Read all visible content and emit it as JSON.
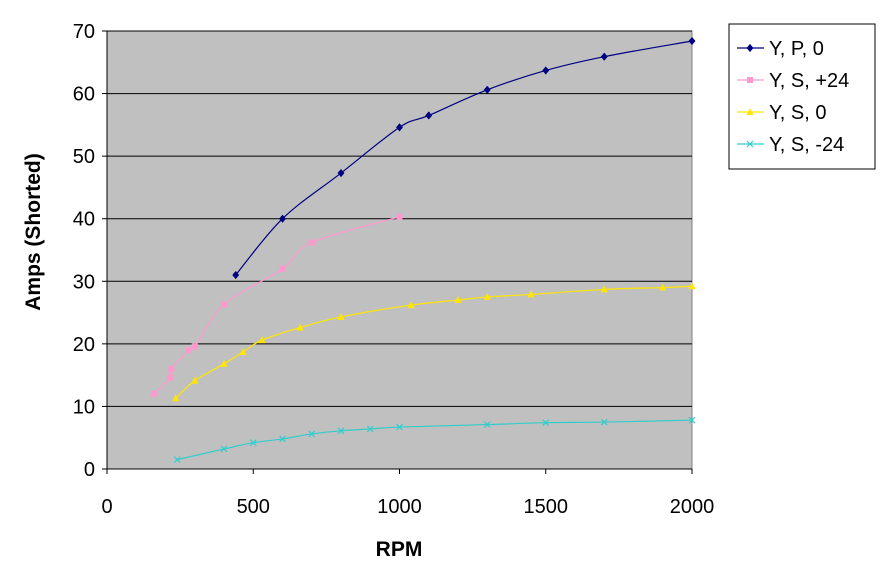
{
  "chart_data": {
    "type": "line",
    "title": "",
    "xlabel": "RPM",
    "ylabel": "Amps (Shorted)",
    "xlim": [
      0,
      2000
    ],
    "ylim": [
      0,
      70
    ],
    "x_ticks": [
      0,
      500,
      1000,
      1500,
      2000
    ],
    "y_ticks": [
      0,
      10,
      20,
      30,
      40,
      50,
      60,
      70
    ],
    "grid": "horizontal",
    "plot_background": "#C0C0C0",
    "legend_position": "right",
    "series": [
      {
        "name": "Y, P, 0",
        "color": "#000080",
        "marker": "diamond",
        "points": [
          [
            440,
            31
          ],
          [
            600,
            40
          ],
          [
            800,
            47.3
          ],
          [
            1000,
            54.6
          ],
          [
            1100,
            56.5
          ],
          [
            1300,
            60.6
          ],
          [
            1500,
            63.7
          ],
          [
            1700,
            65.9
          ],
          [
            2000,
            68.4
          ]
        ]
      },
      {
        "name": "Y, S, +24",
        "color": "#FF99CC",
        "marker": "square",
        "points": [
          [
            160,
            12
          ],
          [
            215,
            14.6
          ],
          [
            220,
            16
          ],
          [
            280,
            19
          ],
          [
            300,
            19.6
          ],
          [
            400,
            26.3
          ],
          [
            600,
            32
          ],
          [
            700,
            36.2
          ],
          [
            1000,
            40.3
          ]
        ]
      },
      {
        "name": "Y, S, 0",
        "color": "#FFE600",
        "marker": "triangle",
        "points": [
          [
            235,
            11.3
          ],
          [
            300,
            14.1
          ],
          [
            400,
            16.8
          ],
          [
            465,
            18.7
          ],
          [
            530,
            20.6
          ],
          [
            660,
            22.6
          ],
          [
            800,
            24.3
          ],
          [
            1040,
            26.2
          ],
          [
            1200,
            27
          ],
          [
            1300,
            27.5
          ],
          [
            1450,
            27.9
          ],
          [
            1700,
            28.7
          ],
          [
            1900,
            29
          ],
          [
            2000,
            29.2
          ]
        ]
      },
      {
        "name": "Y, S, -24",
        "color": "#33CCCC",
        "marker": "x",
        "points": [
          [
            240,
            1.5
          ],
          [
            400,
            3.2
          ],
          [
            500,
            4.2
          ],
          [
            600,
            4.8
          ],
          [
            700,
            5.6
          ],
          [
            800,
            6.1
          ],
          [
            900,
            6.4
          ],
          [
            1000,
            6.7
          ],
          [
            1300,
            7.1
          ],
          [
            1500,
            7.4
          ],
          [
            1700,
            7.5
          ],
          [
            2000,
            7.8
          ]
        ]
      }
    ]
  }
}
